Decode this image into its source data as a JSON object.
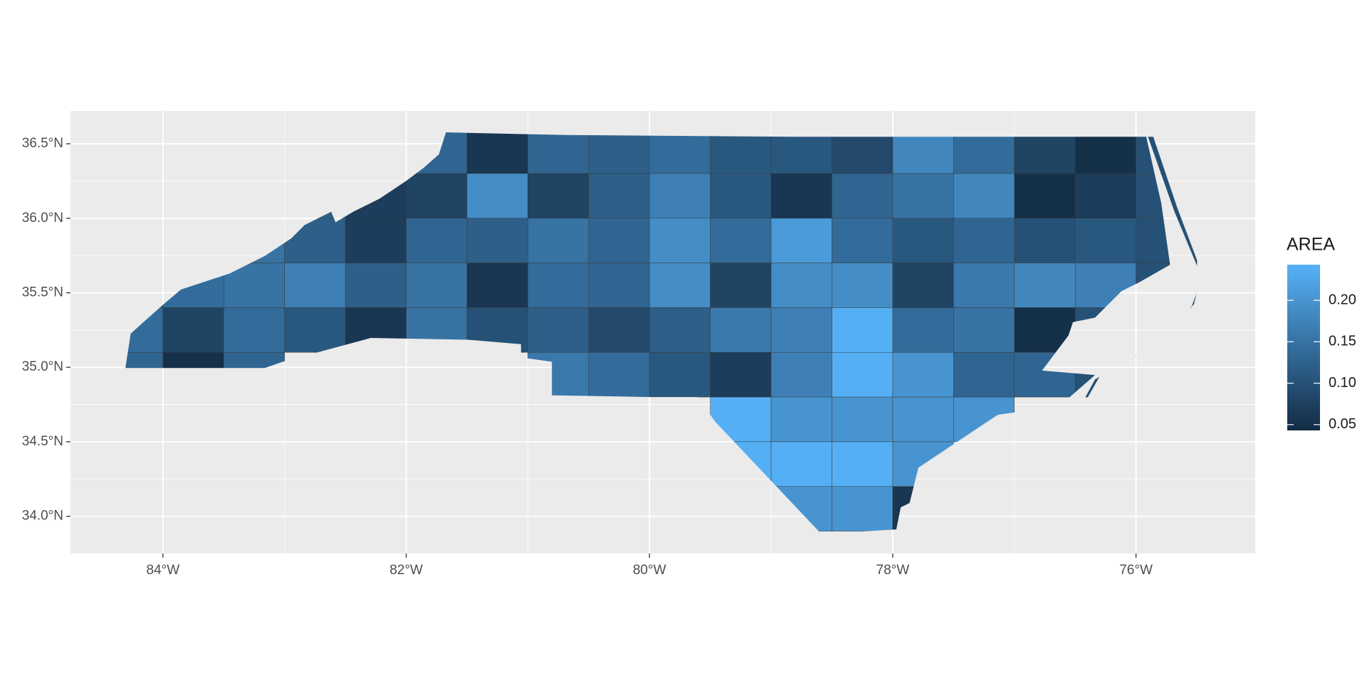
{
  "chart_data": {
    "type": "map",
    "legend_title": "AREA",
    "colors": [
      "#132B43",
      "#56B1F7"
    ],
    "colorlim": [
      0.043,
      0.243
    ],
    "legend_ticks": [
      {
        "value": 0.05,
        "label": "0.05"
      },
      {
        "value": 0.1,
        "label": "0.10"
      },
      {
        "value": 0.15,
        "label": "0.15"
      },
      {
        "value": 0.2,
        "label": "0.20"
      }
    ],
    "xlim": [
      -84.76,
      -75.02
    ],
    "ylim": [
      33.75,
      36.72
    ],
    "xticks": [
      {
        "value": -84,
        "label": "84°W"
      },
      {
        "value": -82,
        "label": "82°W"
      },
      {
        "value": -80,
        "label": "80°W"
      },
      {
        "value": -78,
        "label": "78°W"
      },
      {
        "value": -76,
        "label": "76°W"
      }
    ],
    "yticks": [
      {
        "value": 34,
        "label": "34.0°N"
      },
      {
        "value": 34.5,
        "label": "34.5°N"
      },
      {
        "value": 35,
        "label": "35.0°N"
      },
      {
        "value": 35.5,
        "label": "35.5°N"
      },
      {
        "value": 36,
        "label": "36.0°N"
      },
      {
        "value": 36.5,
        "label": "36.5°N"
      }
    ],
    "grid": true,
    "x": [
      -84.25,
      -83.75,
      -83.25,
      -82.75,
      -82.25,
      -81.75,
      -81.25,
      -80.75,
      -80.25,
      -79.75,
      -79.25,
      -78.75,
      -78.25,
      -77.75,
      -77.25,
      -76.75,
      -76.25,
      -75.75
    ],
    "y": [
      36.45,
      36.15,
      35.85,
      35.55,
      35.25,
      34.95,
      34.65,
      34.35,
      34.05
    ],
    "values": [
      [
        null,
        null,
        null,
        null,
        null,
        0.13,
        0.06,
        0.13,
        0.12,
        0.14,
        0.11,
        0.11,
        0.09,
        0.18,
        0.14,
        0.08,
        0.05,
        0.1
      ],
      [
        null,
        null,
        null,
        0.12,
        0.07,
        0.08,
        0.19,
        0.08,
        0.12,
        0.17,
        0.11,
        0.06,
        0.13,
        0.15,
        0.18,
        0.05,
        0.07,
        0.1
      ],
      [
        null,
        null,
        0.15,
        0.12,
        0.07,
        0.13,
        0.12,
        0.15,
        0.13,
        0.19,
        0.14,
        0.21,
        0.14,
        0.11,
        0.13,
        0.1,
        0.11,
        0.1
      ],
      [
        0.12,
        0.14,
        0.15,
        0.17,
        0.12,
        0.15,
        0.06,
        0.14,
        0.13,
        0.19,
        0.08,
        0.19,
        0.19,
        0.08,
        0.16,
        0.18,
        0.17,
        0.1
      ],
      [
        0.14,
        0.08,
        0.14,
        0.11,
        0.06,
        0.15,
        0.1,
        0.12,
        0.09,
        0.12,
        0.16,
        0.17,
        0.24,
        0.14,
        0.15,
        0.05,
        0.1,
        null
      ],
      [
        0.13,
        0.05,
        0.13,
        null,
        null,
        null,
        null,
        0.16,
        0.14,
        0.11,
        0.07,
        0.17,
        0.24,
        0.2,
        0.13,
        0.13,
        0.1,
        null
      ],
      [
        null,
        null,
        null,
        null,
        null,
        null,
        null,
        null,
        null,
        null,
        0.24,
        0.2,
        0.2,
        0.2,
        0.2,
        null,
        null,
        null
      ],
      [
        null,
        null,
        null,
        null,
        null,
        null,
        null,
        null,
        null,
        null,
        0.24,
        0.24,
        0.24,
        0.2,
        null,
        null,
        null,
        null
      ],
      [
        null,
        null,
        null,
        null,
        null,
        null,
        null,
        null,
        null,
        null,
        null,
        0.2,
        0.2,
        0.06,
        null,
        null,
        null,
        null
      ]
    ]
  }
}
